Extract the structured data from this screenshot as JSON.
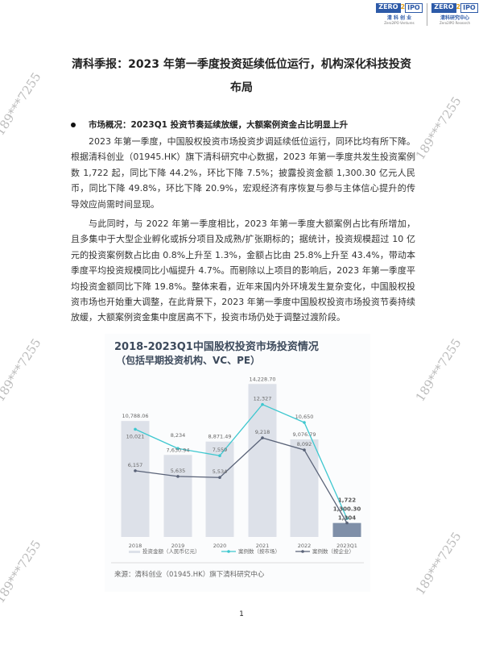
{
  "header": {
    "logos": [
      {
        "mark": "ZERO2IPO",
        "cn": "清科创业",
        "en": "Zero2IPO Ventures"
      },
      {
        "mark": "ZERO2IPO",
        "cn": "清科研究中心",
        "en": "Zero2IPO Research"
      }
    ]
  },
  "title_line1": "清科季报：2023 年第一季度投资延续低位运行，机构深化科技投资",
  "title_line2": "布局",
  "section_heading": "市场概况：2023Q1 投资节奏延续放缓，大额案例资金占比明显上升",
  "paragraphs": [
    "2023 年第一季度，中国股权投资市场投资步调延续低位运行，同环比均有所下降。根据清科创业（01945.HK）旗下清科研究中心数据，2023 年第一季度共发生投资案例数 1,722 起，同比下降 44.2%，环比下降 7.5%；披露投资金额 1,300.30 亿元人民币，同比下降 49.8%，环比下降 20.9%，宏观经济有序恢复与参与主体信心提升的传导效应尚需时间显现。",
    "与此同时，与 2022 年第一季度相比，2023 年第一季度大额案例占比有所增加，且多集中于大型企业孵化或拆分项目及成熟/扩张期标的；据统计，投资规模超过 10 亿元的投资案例数占比由 0.8%上升至 1.3%，金额占比由 25.8%上升至 43.4%，带动本季度平均投资规模同比小幅提升 4.7%。而剔除以上项目的影响后，2023 年第一季度平均投资金额同比下降 19.8%。整体来看，近年来国内外环境发生复杂变化，中国股权投资市场也开始重大调整，在此背景下，2023 年第一季度中国股权投资市场投资节奏持续放缓，大额案例资金集中度居高不下，投资市场仍处于调整过渡阶段。"
  ],
  "chart_data": {
    "type": "bar",
    "title": "2018-2023Q1中国股权投资市场投资情况",
    "subtitle": "（包括早期投资机构、VC、PE）",
    "categories": [
      "2018",
      "2019",
      "2020",
      "2021",
      "2022",
      "2023Q1"
    ],
    "ylim": [
      0,
      15000
    ],
    "grid": false,
    "legend_position": "bottom",
    "series": [
      {
        "name": "投资金额（人民币亿元）",
        "type": "bar",
        "color": "#dde1e9",
        "highlight_color": "#7f8fa8",
        "values": [
          10788.06,
          7630.94,
          8871.49,
          14228.7,
          9076.79,
          1300.3
        ],
        "labels": [
          "10,788.06",
          "7,630.94",
          "8,871.49",
          "14,228.70",
          "9,076.79",
          "1,300.30"
        ]
      },
      {
        "name": "案例数（按市场）",
        "type": "line",
        "color": "#3ec7cf",
        "values": [
          10021,
          8234,
          7559,
          12327,
          10650,
          1722
        ],
        "labels": [
          "10,021",
          "8,234",
          "7,559",
          "12,327",
          "10,650",
          "1,722"
        ]
      },
      {
        "name": "案例数（按企业）",
        "type": "line",
        "color": "#5a6378",
        "values": [
          6157,
          5635,
          5534,
          9218,
          8092,
          1304
        ],
        "labels": [
          "6,157",
          "5,635",
          "5,534",
          "9,218",
          "8,092",
          "1,304"
        ]
      }
    ],
    "source": "来源：清科创业（01945.HK）旗下清科研究中心"
  },
  "watermark": "189***7255",
  "page_number": "1"
}
